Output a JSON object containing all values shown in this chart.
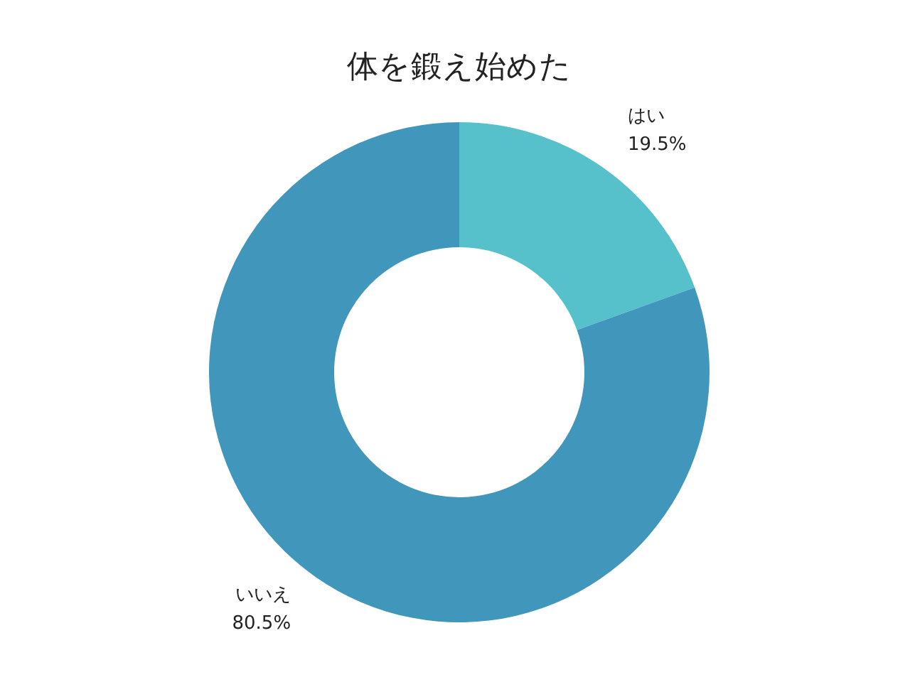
{
  "chart_data": {
    "type": "donut",
    "title": "体を鍛え始めた",
    "categories": [
      "はい",
      "いいえ"
    ],
    "values": [
      19.5,
      80.5
    ],
    "colors": [
      "#56c1cb",
      "#4196bb"
    ],
    "value_labels": [
      "19.5%",
      "80.5%"
    ],
    "legend": false
  }
}
